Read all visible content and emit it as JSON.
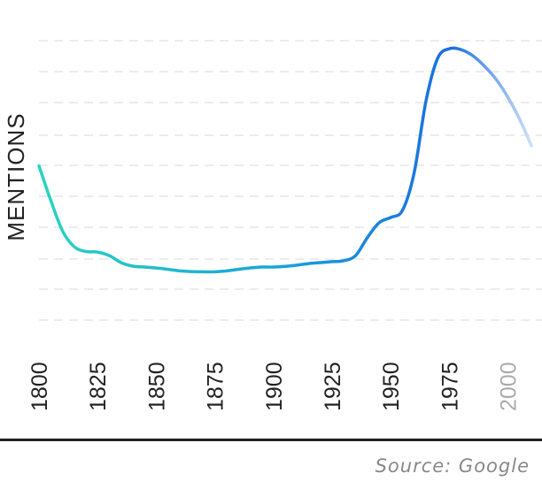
{
  "chart_data": {
    "type": "line",
    "ylabel": "MENTIONS",
    "xlim": [
      1800,
      2010
    ],
    "ylim": [
      0,
      100
    ],
    "x_ticks": [
      "1800",
      "1825",
      "1850",
      "1875",
      "1900",
      "1925",
      "1950",
      "1975",
      "2000"
    ],
    "grid": true,
    "series": [
      {
        "x": [
          1800,
          1805,
          1810,
          1815,
          1820,
          1825,
          1830,
          1835,
          1840,
          1845,
          1850,
          1855,
          1860,
          1865,
          1870,
          1875,
          1880,
          1885,
          1890,
          1895,
          1900,
          1905,
          1910,
          1915,
          1920,
          1925,
          1930,
          1935,
          1940,
          1945,
          1950,
          1955,
          1960,
          1965,
          1970,
          1975,
          1980,
          1985,
          1990,
          1995,
          2000,
          2005,
          2010
        ],
        "y": [
          60.4,
          49.6,
          40.0,
          35.0,
          33.5,
          33.3,
          32.2,
          30.0,
          28.9,
          28.6,
          28.3,
          27.9,
          27.4,
          27.2,
          27.1,
          27.1,
          27.4,
          27.9,
          28.3,
          28.6,
          28.6,
          28.8,
          29.2,
          29.7,
          30.0,
          30.3,
          30.6,
          32.2,
          37.8,
          42.5,
          44.2,
          46.4,
          58.3,
          80.6,
          94.2,
          97.2,
          96.9,
          95.0,
          91.7,
          87.5,
          81.9,
          75.0,
          66.7
        ]
      }
    ],
    "colors": {
      "start": "#2ad4c0",
      "mid": "#1aa6d8",
      "peak": "#1a6ee0",
      "faded": "#e4eefb"
    }
  },
  "source": "Source: Google"
}
